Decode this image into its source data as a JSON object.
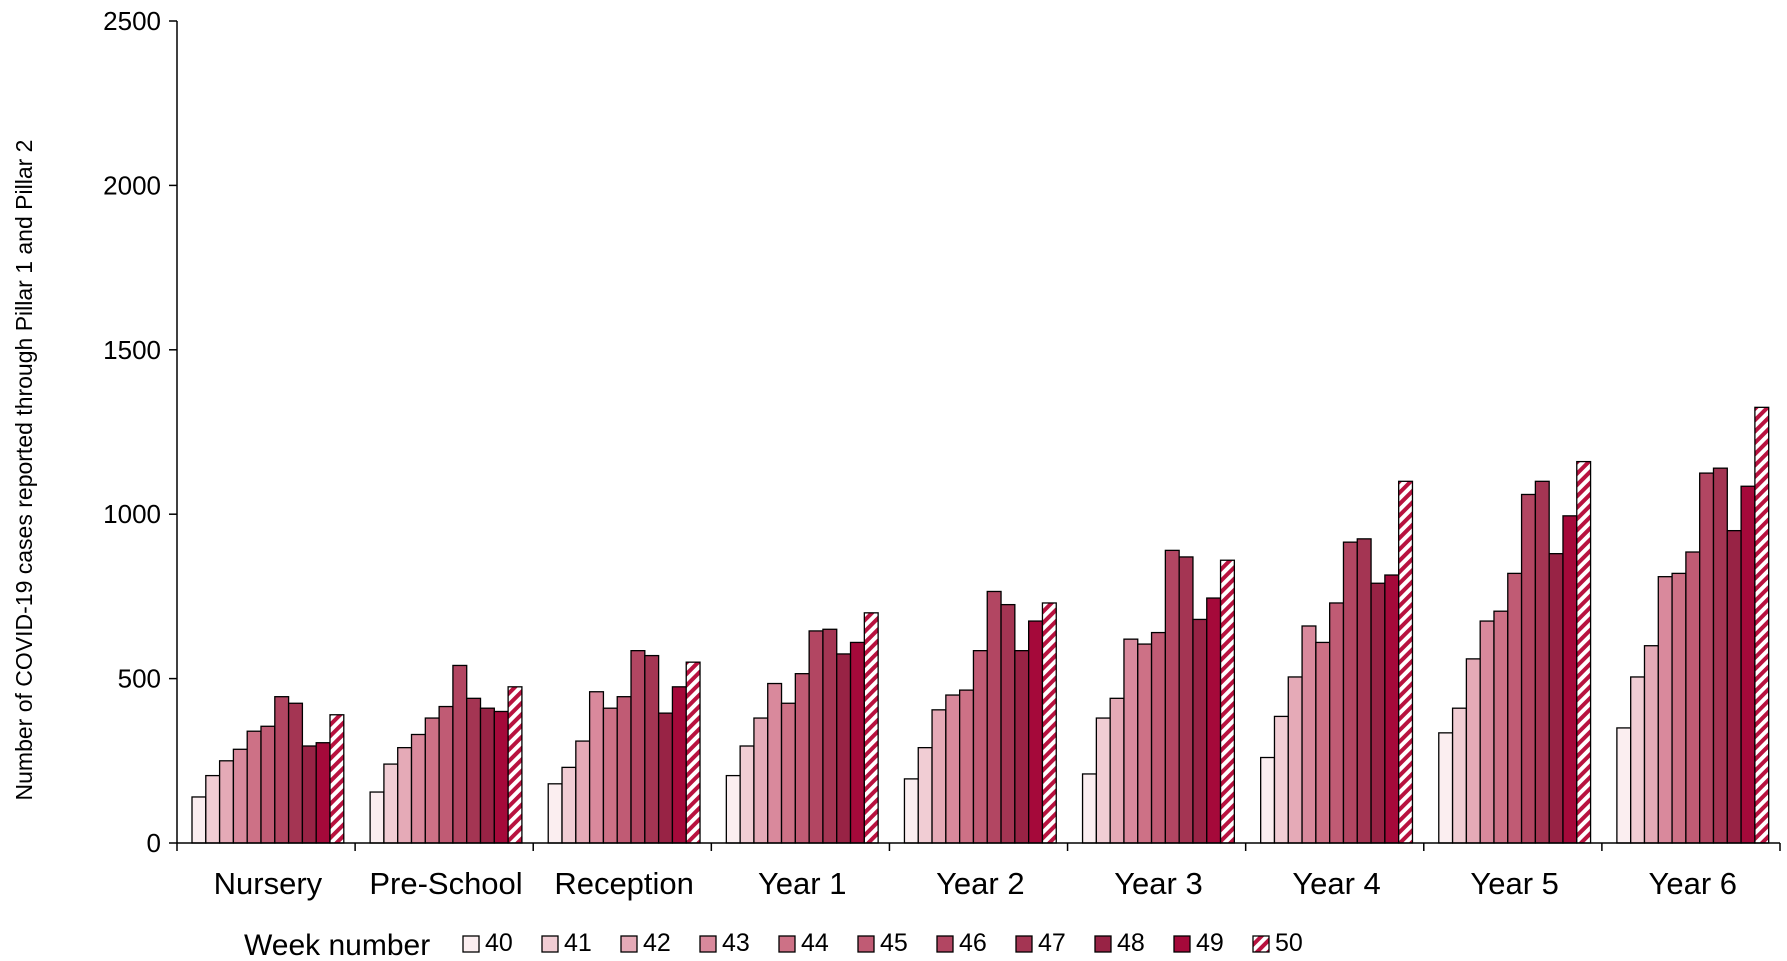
{
  "chart_data": {
    "type": "bar",
    "ylabel": "Number of COVID-19 cases reported through Pillar 1 and Pillar 2",
    "xlabel": "",
    "ylim": [
      0,
      2500
    ],
    "yticks": [
      "0",
      "500",
      "1000",
      "1500",
      "2000",
      "2500"
    ],
    "grid": false,
    "legend_position": "bottom",
    "legend_title": "Week number",
    "categories": [
      "Nursery",
      "Pre-School",
      "Reception",
      "Year 1",
      "Year 2",
      "Year 3",
      "Year 4",
      "Year 5",
      "Year 6"
    ],
    "series": [
      {
        "name": "40",
        "color": "#fbeef0",
        "hatched": false,
        "values": [
          140,
          155,
          180,
          205,
          195,
          210,
          260,
          335,
          350
        ]
      },
      {
        "name": "41",
        "color": "#f1cdd4",
        "hatched": false,
        "values": [
          205,
          240,
          230,
          295,
          290,
          380,
          385,
          410,
          505
        ]
      },
      {
        "name": "42",
        "color": "#e5aab7",
        "hatched": false,
        "values": [
          250,
          290,
          310,
          380,
          405,
          440,
          505,
          560,
          600
        ]
      },
      {
        "name": "43",
        "color": "#d9899c",
        "hatched": false,
        "values": [
          285,
          330,
          460,
          485,
          450,
          620,
          660,
          675,
          810
        ]
      },
      {
        "name": "44",
        "color": "#cd7186",
        "hatched": false,
        "values": [
          340,
          380,
          410,
          425,
          465,
          605,
          610,
          705,
          820
        ]
      },
      {
        "name": "45",
        "color": "#c05b74",
        "hatched": false,
        "values": [
          355,
          415,
          445,
          515,
          585,
          640,
          730,
          820,
          885
        ]
      },
      {
        "name": "46",
        "color": "#b24662",
        "hatched": false,
        "values": [
          445,
          540,
          585,
          645,
          765,
          890,
          915,
          1060,
          1125
        ]
      },
      {
        "name": "47",
        "color": "#a43553",
        "hatched": false,
        "values": [
          425,
          440,
          570,
          650,
          725,
          870,
          925,
          1100,
          1140
        ]
      },
      {
        "name": "48",
        "color": "#982345",
        "hatched": false,
        "values": [
          295,
          410,
          395,
          575,
          585,
          680,
          790,
          880,
          950
        ]
      },
      {
        "name": "49",
        "color": "#a5093a",
        "hatched": false,
        "values": [
          305,
          400,
          475,
          610,
          675,
          745,
          815,
          995,
          1085
        ]
      },
      {
        "name": "50",
        "color": "#b8123f",
        "hatched": true,
        "values": [
          390,
          475,
          550,
          700,
          730,
          860,
          1100,
          1160,
          1325
        ]
      }
    ]
  }
}
